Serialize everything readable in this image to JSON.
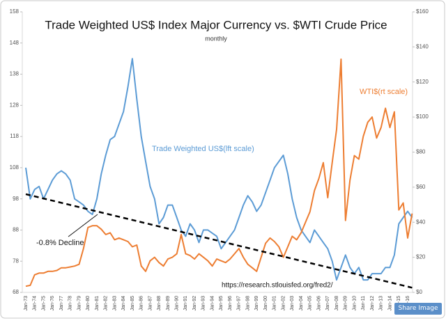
{
  "chart_data": {
    "type": "line",
    "title": "Trade Weighted US$ Index Major Currency vs. $WTI Crude Price",
    "subtitle": "monthly",
    "categories": [
      "Jan-73",
      null,
      "Jan-74",
      null,
      "Jan-75",
      null,
      "Jan-76",
      null,
      "Jan-77",
      null,
      "Jan-78",
      null,
      "Jan-79",
      null,
      "Jan-80",
      null,
      "Jan-81",
      null,
      "Jan-82",
      null,
      "Jan-83",
      null,
      "Jan-84",
      null,
      "Jan-85",
      null,
      "Jan-86",
      null,
      "Jan-87",
      null,
      "Jan-88",
      null,
      "Jan-89",
      null,
      "Jan-90",
      null,
      "Jan-91",
      null,
      "Jan-92",
      null,
      "Jan-93",
      null,
      "Jan-94",
      null,
      "Jan-95",
      null,
      "Jan-96",
      null,
      "Jan-97",
      null,
      "Jan-98",
      null,
      "Jan-99",
      null,
      "Jan-00",
      null,
      "Jan-01",
      null,
      "Jan-02",
      null,
      "Jan-03",
      null,
      "Jan-04",
      null,
      "Jan-05",
      null,
      "Jan-06",
      null,
      "Jan-07",
      null,
      "Jan-08",
      null,
      "Jan-09",
      null,
      "Jan-10",
      null,
      "Jan-11",
      null,
      "Jan-12",
      null,
      "Jan-13",
      null,
      "Jan-14",
      null,
      "Jan-15",
      null,
      "Jan-16",
      null
    ],
    "series": [
      {
        "name": "Trade Weighted US$(lft scale)",
        "color": "#5b9bd5",
        "axis": "y",
        "values": [
          108,
          98,
          101,
          102,
          98,
          101,
          104,
          106,
          107,
          106,
          104,
          98,
          97,
          96,
          94,
          93,
          98,
          106,
          112,
          117,
          118,
          122,
          126,
          134,
          143,
          130,
          118,
          110,
          102,
          98,
          90,
          92,
          96,
          96,
          92,
          88,
          86,
          90,
          88,
          84,
          88,
          88,
          87,
          86,
          82,
          84,
          86,
          88,
          92,
          96,
          99,
          97,
          94,
          96,
          100,
          104,
          108,
          110,
          112,
          106,
          98,
          92,
          88,
          86,
          84,
          88,
          86,
          84,
          82,
          78,
          72,
          76,
          80,
          76,
          74,
          76,
          72,
          72,
          74,
          74,
          74,
          76,
          76,
          80,
          90,
          92,
          94,
          92
        ]
      },
      {
        "name": "WTI$(rt scale)",
        "color": "#ed7d31",
        "axis": "y2",
        "values": [
          3.5,
          4,
          10,
          11,
          11,
          12,
          12,
          12.5,
          14,
          14,
          14.5,
          15,
          16,
          25,
          37,
          38,
          38,
          36,
          33,
          34,
          30,
          31,
          30,
          29,
          26,
          27,
          15,
          12,
          18,
          20,
          17,
          15,
          19,
          20,
          22,
          33,
          22,
          21,
          19,
          22,
          20,
          18,
          15,
          19,
          18,
          17,
          19,
          22,
          25,
          20,
          16,
          14,
          12,
          20,
          28,
          31,
          29,
          26,
          20,
          26,
          32,
          30,
          34,
          40,
          46,
          58,
          65,
          74,
          54,
          74,
          93,
          133,
          41,
          64,
          78,
          76,
          89,
          97,
          100,
          88,
          94,
          105,
          94,
          103,
          47,
          51,
          31,
          45
        ]
      }
    ],
    "trendline": {
      "label": "-0.8% Decline",
      "values": [
        99.5,
        69.5
      ]
    },
    "source": "https://research.stlouisfed.org/fred2/",
    "ylim": [
      68,
      158
    ],
    "yticks": [
      68,
      78,
      88,
      98,
      108,
      118,
      128,
      138,
      148,
      158
    ],
    "y2lim": [
      0,
      160
    ],
    "y2ticks": [
      {
        "value": 0,
        "label": "$0"
      },
      {
        "value": 20,
        "label": "$20"
      },
      {
        "value": 40,
        "label": "$40"
      },
      {
        "value": 60,
        "label": "$60"
      },
      {
        "value": 80,
        "label": "$80"
      },
      {
        "value": 100,
        "label": "$100"
      },
      {
        "value": 120,
        "label": "$120"
      },
      {
        "value": 140,
        "label": "$140"
      },
      {
        "value": 160,
        "label": "$160"
      }
    ]
  },
  "share_button": "Share Image"
}
